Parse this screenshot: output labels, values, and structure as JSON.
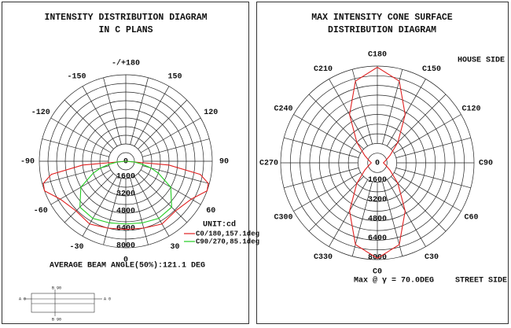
{
  "chart_data": [
    {
      "type": "polar",
      "title_lines": [
        "INTENSITY DISTRIBUTION DIAGRAM",
        "IN C PLANS"
      ],
      "rlim": [
        0,
        8000
      ],
      "rticks": [
        0,
        1600,
        3200,
        4800,
        6400,
        8000
      ],
      "angle_ticks": [
        {
          "value": 180,
          "label": "-/+180"
        },
        150,
        120,
        90,
        60,
        30,
        0,
        -30,
        -60,
        -90,
        -120,
        -150
      ],
      "x": [
        -90,
        -85,
        -80,
        -75,
        -70,
        -60,
        -45,
        -30,
        -15,
        0,
        15,
        30,
        45,
        60,
        70,
        75,
        80,
        85,
        90
      ],
      "series": [
        {
          "name": "C0/180,157.1deg",
          "color": "#e02020",
          "values": [
            0,
            4000,
            7000,
            7900,
            8000,
            7000,
            6500,
            6700,
            6400,
            6300,
            6400,
            6700,
            6500,
            7000,
            8000,
            7900,
            7000,
            4000,
            0
          ]
        },
        {
          "name": "C90/270,85.1deg",
          "color": "#22cc22",
          "values": [
            0,
            800,
            1500,
            2400,
            3200,
            4800,
            6000,
            6100,
            5900,
            5800,
            5900,
            6100,
            6000,
            4800,
            3200,
            2400,
            1500,
            800,
            0
          ]
        }
      ],
      "unit_label": "UNIT:cd",
      "annotation": "AVERAGE BEAM ANGLE(50%):121.1 DEG"
    },
    {
      "type": "polar",
      "title_lines": [
        "MAX INTENSITY CONE SURFACE",
        "DISTRIBUTION DIAGRAM"
      ],
      "rlim": [
        0,
        8000
      ],
      "rticks": [
        0,
        1600,
        3200,
        4800,
        6400,
        8000
      ],
      "angle_ticks": [
        {
          "value": 180,
          "label": "C180"
        },
        {
          "value": 150,
          "label": "C150"
        },
        {
          "value": 120,
          "label": "C120"
        },
        {
          "value": 90,
          "label": "C90"
        },
        {
          "value": 60,
          "label": "C60"
        },
        {
          "value": 30,
          "label": "C30"
        },
        {
          "value": 0,
          "label": "C0"
        },
        {
          "value": -30,
          "label": "C330"
        },
        {
          "value": -60,
          "label": "C300"
        },
        {
          "value": -90,
          "label": "C270"
        },
        {
          "value": -120,
          "label": "C240"
        },
        {
          "value": -150,
          "label": "C210"
        }
      ],
      "x": [
        0,
        15,
        30,
        45,
        60,
        75,
        90,
        105,
        120,
        135,
        150,
        165,
        180,
        195,
        210,
        225,
        240,
        255,
        270,
        285,
        300,
        315,
        330,
        345
      ],
      "closed": true,
      "series": [
        {
          "color": "#e02020",
          "values": [
            7900,
            7000,
            4600,
            2400,
            1200,
            700,
            500,
            700,
            1200,
            2400,
            4600,
            7000,
            7900,
            7000,
            4600,
            2400,
            1200,
            700,
            500,
            700,
            1200,
            2400,
            4600,
            7000
          ]
        }
      ],
      "annotations": [
        "HOUSE SIDE",
        "Max @ γ = 70.0DEG",
        "STREET SIDE"
      ]
    }
  ],
  "luminaire_sketch": {
    "labels": [
      "B 90",
      "A 0",
      "A 0",
      "B 90"
    ]
  }
}
